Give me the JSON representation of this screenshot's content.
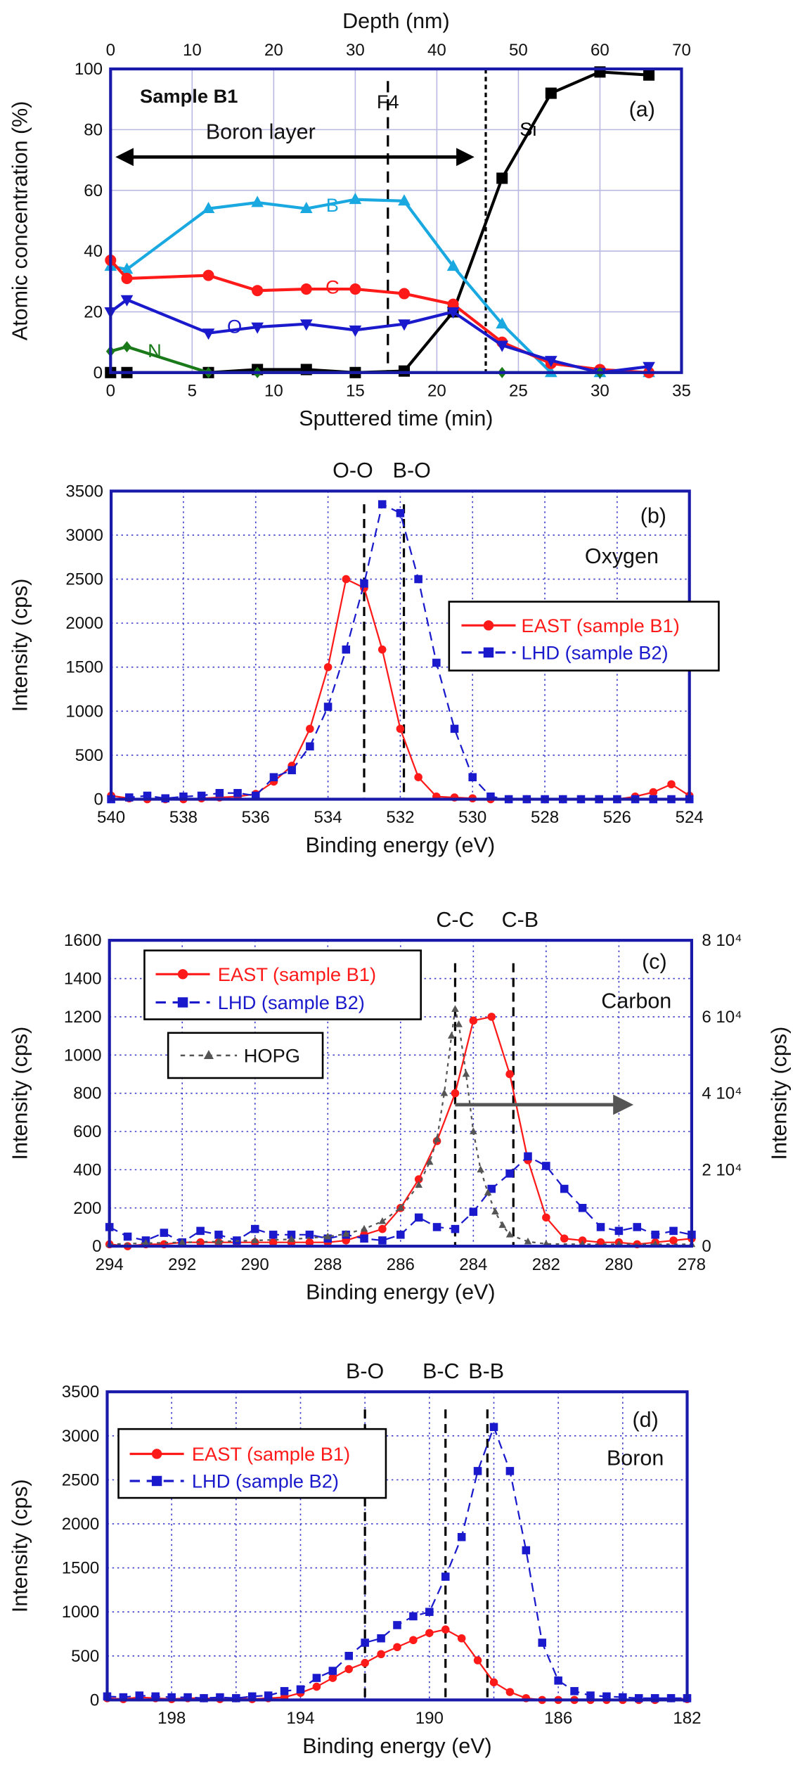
{
  "colors": {
    "frame": "#1a1aaa",
    "grid": "#3a3acc",
    "east": "#ff1a1a",
    "lhd": "#1a1acc",
    "hopg": "#555555",
    "B": "#1aa8e0",
    "C": "#ff1a1a",
    "O": "#1a1acc",
    "N": "#1a7a1a",
    "Si": "#000000"
  },
  "chart_data": [
    {
      "type": "line",
      "panel_label": "(a)",
      "sample_label": "Sample B1",
      "xlabel": "Sputtered time (min)",
      "ylabel": "Atomic concentration (%)",
      "x2label": "Depth (nm)",
      "xlim": [
        0,
        35
      ],
      "ylim": [
        0,
        100
      ],
      "x2lim": [
        0,
        70
      ],
      "xticks": [
        0,
        5,
        10,
        15,
        20,
        25,
        30,
        35
      ],
      "x2ticks": [
        0,
        10,
        20,
        30,
        40,
        50,
        60,
        70
      ],
      "yticks": [
        0,
        20,
        40,
        60,
        80,
        100
      ],
      "grid": true,
      "vlines": [
        {
          "x": 17,
          "label": "F4"
        },
        {
          "x": 23,
          "label": ""
        }
      ],
      "region": {
        "label": "Boron layer",
        "from": 0,
        "to": 22.5
      },
      "series": [
        {
          "name": "Si",
          "marker": "square",
          "x": [
            0,
            1,
            6,
            9,
            12,
            15,
            18,
            21,
            24,
            27,
            30,
            33
          ],
          "y": [
            0,
            0,
            0,
            1,
            1,
            0,
            0.5,
            20,
            64,
            92,
            99,
            98
          ]
        },
        {
          "name": "B",
          "marker": "triangle-up",
          "x": [
            0,
            1,
            6,
            9,
            12,
            15,
            18,
            21,
            24,
            27,
            30,
            33
          ],
          "y": [
            35,
            34,
            54,
            56,
            54,
            57,
            56.5,
            35,
            16,
            0,
            0,
            0
          ]
        },
        {
          "name": "C",
          "marker": "circle",
          "x": [
            0,
            1,
            6,
            9,
            12,
            15,
            18,
            21,
            24,
            27,
            30,
            33
          ],
          "y": [
            37,
            31,
            32,
            27,
            27.5,
            27.5,
            26,
            22.5,
            10,
            3,
            1,
            0
          ]
        },
        {
          "name": "O",
          "marker": "triangle-down",
          "x": [
            0,
            1,
            6,
            9,
            12,
            15,
            18,
            21,
            24,
            27,
            30,
            33
          ],
          "y": [
            20,
            24,
            13,
            15,
            16,
            14,
            16,
            20,
            9,
            4,
            0,
            2
          ]
        },
        {
          "name": "N",
          "marker": "diamond",
          "x": [
            0,
            1,
            6,
            9,
            24,
            30
          ],
          "y": [
            7,
            8.5,
            0,
            0,
            0,
            0
          ]
        }
      ]
    },
    {
      "type": "line",
      "panel_label": "(b)",
      "element_label": "Oxygen",
      "xlabel": "Binding energy (eV)",
      "ylabel": "Intensity (cps)",
      "xlim": [
        540,
        524
      ],
      "ylim": [
        0,
        3500
      ],
      "xticks": [
        540,
        538,
        536,
        534,
        532,
        530,
        528,
        526,
        524
      ],
      "yticks": [
        0,
        500,
        1000,
        1500,
        2000,
        2500,
        3000,
        3500
      ],
      "grid": true,
      "vlines": [
        {
          "x": 533.0,
          "label": "O-O"
        },
        {
          "x": 531.9,
          "label": "B-O"
        }
      ],
      "series": [
        {
          "name": "EAST (sample B1)",
          "marker": "circle",
          "x": [
            540,
            539.5,
            539,
            538.5,
            538,
            537.5,
            537,
            536.5,
            536,
            535.5,
            535,
            534.5,
            534,
            533.5,
            533,
            532.5,
            532,
            531.5,
            531,
            530.5,
            530,
            529.5,
            529,
            528.5,
            528,
            527.5,
            527,
            526.5,
            526,
            525.5,
            525,
            524.5,
            524
          ],
          "y": [
            40,
            10,
            0,
            0,
            0,
            10,
            20,
            30,
            60,
            200,
            380,
            800,
            1500,
            2500,
            2400,
            1700,
            800,
            250,
            30,
            20,
            10,
            0,
            0,
            0,
            0,
            0,
            0,
            0,
            0,
            30,
            80,
            170,
            40
          ]
        },
        {
          "name": "LHD (sample B2)",
          "marker": "square",
          "x": [
            540,
            539.5,
            539,
            538.5,
            538,
            537.5,
            537,
            536.5,
            536,
            535.5,
            535,
            534.5,
            534,
            533.5,
            533,
            532.5,
            532,
            531.5,
            531,
            530.5,
            530,
            529.5,
            529,
            528.5,
            528,
            527.5,
            527,
            526.5,
            526,
            525.5,
            525,
            524.5,
            524
          ],
          "y": [
            0,
            20,
            40,
            10,
            30,
            40,
            70,
            70,
            40,
            250,
            330,
            600,
            1050,
            1700,
            2450,
            3350,
            3250,
            2500,
            1550,
            800,
            250,
            30,
            0,
            0,
            0,
            0,
            0,
            0,
            0,
            0,
            0,
            0,
            0
          ]
        }
      ]
    },
    {
      "type": "line",
      "panel_label": "(c)",
      "element_label": "Carbon",
      "xlabel": "Binding energy (eV)",
      "ylabel": "Intensity (cps)",
      "y2label": "Intensity (cps)",
      "xlim": [
        294,
        278
      ],
      "ylim": [
        0,
        1600
      ],
      "y2lim": [
        0,
        80000
      ],
      "xticks": [
        294,
        292,
        290,
        288,
        286,
        284,
        282,
        280,
        278
      ],
      "yticks": [
        0,
        200,
        400,
        600,
        800,
        1000,
        1200,
        1400,
        1600
      ],
      "y2ticks": [
        "0",
        "2 10⁴",
        "4 10⁴",
        "6 10⁴",
        "8 10⁴"
      ],
      "grid": true,
      "vlines": [
        {
          "x": 284.5,
          "label": "C-C"
        },
        {
          "x": 282.9,
          "label": "C-B"
        }
      ],
      "arrow": {
        "from": 284.5,
        "to": 279.6,
        "y": 740,
        "meaning": "HOPG uses right axis"
      },
      "series": [
        {
          "name": "EAST (sample B1)",
          "marker": "circle",
          "x": [
            294,
            293.5,
            293,
            292.5,
            292,
            291.5,
            291,
            290.5,
            290,
            289.5,
            289,
            288.5,
            288,
            287.5,
            287,
            286.5,
            286,
            285.5,
            285,
            284.5,
            284,
            283.5,
            283,
            282.5,
            282,
            281.5,
            281,
            280.5,
            280,
            279.5,
            279,
            278.5,
            278
          ],
          "y": [
            10,
            0,
            10,
            10,
            20,
            20,
            20,
            20,
            20,
            20,
            20,
            20,
            20,
            30,
            60,
            90,
            200,
            350,
            550,
            800,
            1180,
            1200,
            900,
            450,
            150,
            40,
            30,
            20,
            20,
            10,
            20,
            30,
            40
          ]
        },
        {
          "name": "LHD (sample B2)",
          "marker": "square",
          "x": [
            294,
            293.5,
            293,
            292.5,
            292,
            291.5,
            291,
            290.5,
            290,
            289.5,
            289,
            288.5,
            288,
            287.5,
            287,
            286.5,
            286,
            285.5,
            285,
            284.5,
            284,
            283.5,
            283,
            282.5,
            282,
            281.5,
            281,
            280.5,
            280,
            279.5,
            279,
            278.5,
            278
          ],
          "y": [
            100,
            50,
            30,
            70,
            20,
            80,
            60,
            30,
            90,
            60,
            60,
            60,
            40,
            60,
            40,
            30,
            60,
            150,
            100,
            90,
            180,
            300,
            380,
            470,
            420,
            300,
            200,
            100,
            80,
            100,
            60,
            80,
            60
          ]
        },
        {
          "name": "HOPG",
          "marker": "triangle-up",
          "axis": "right",
          "x": [
            294,
            293,
            292,
            291,
            290,
            289,
            288,
            287.5,
            287,
            286.5,
            286,
            285.5,
            285.2,
            285,
            284.8,
            284.6,
            284.5,
            284.4,
            284.2,
            284,
            283.8,
            283.6,
            283.4,
            283.2,
            283,
            282.5,
            282,
            281,
            280,
            279,
            278
          ],
          "y": [
            500,
            800,
            1000,
            1200,
            1500,
            1800,
            2500,
            3200,
            4500,
            6500,
            10000,
            16000,
            22000,
            28000,
            40000,
            55000,
            62000,
            58000,
            45000,
            30000,
            20000,
            14000,
            9000,
            5500,
            3000,
            1200,
            600,
            500,
            500,
            500,
            500
          ]
        }
      ]
    },
    {
      "type": "line",
      "panel_label": "(d)",
      "element_label": "Boron",
      "xlabel": "Binding energy (eV)",
      "ylabel": "Intensity (cps)",
      "xlim": [
        200,
        182
      ],
      "ylim": [
        0,
        3500
      ],
      "xticks": [
        198,
        194,
        190,
        186,
        182
      ],
      "yticks": [
        0,
        500,
        1000,
        1500,
        2000,
        2500,
        3000,
        3500
      ],
      "grid": true,
      "vlines": [
        {
          "x": 192.0,
          "label": "B-O"
        },
        {
          "x": 189.5,
          "label": "B-C"
        },
        {
          "x": 188.2,
          "label": "B-B"
        }
      ],
      "series": [
        {
          "name": "EAST (sample B1)",
          "marker": "circle",
          "x": [
            200,
            199.5,
            199,
            198.5,
            198,
            197.5,
            197,
            196.5,
            196,
            195.5,
            195,
            194.5,
            194,
            193.5,
            193,
            192.5,
            192,
            191.5,
            191,
            190.5,
            190,
            189.5,
            189,
            188.5,
            188,
            187.5,
            187,
            186.5,
            186,
            185.5,
            185,
            184.5,
            184,
            183.5,
            183,
            182.5,
            182
          ],
          "y": [
            20,
            10,
            30,
            20,
            10,
            20,
            20,
            10,
            20,
            10,
            20,
            30,
            80,
            150,
            250,
            350,
            420,
            520,
            600,
            680,
            760,
            800,
            700,
            450,
            200,
            90,
            20,
            0,
            0,
            0,
            0,
            0,
            0,
            0,
            0,
            20,
            10
          ]
        },
        {
          "name": "LHD (sample B2)",
          "marker": "square",
          "x": [
            200,
            199.5,
            199,
            198.5,
            198,
            197.5,
            197,
            196.5,
            196,
            195.5,
            195,
            194.5,
            194,
            193.5,
            193,
            192.5,
            192,
            191.5,
            191,
            190.5,
            190,
            189.5,
            189,
            188.5,
            188,
            187.5,
            187,
            186.5,
            186,
            185.5,
            185,
            184.5,
            184,
            183.5,
            183,
            182.5,
            182
          ],
          "y": [
            40,
            30,
            50,
            40,
            30,
            30,
            20,
            30,
            20,
            40,
            50,
            100,
            120,
            250,
            330,
            500,
            650,
            700,
            850,
            950,
            1000,
            1400,
            1850,
            2600,
            3100,
            2600,
            1700,
            650,
            220,
            100,
            50,
            40,
            30,
            20,
            20,
            20,
            20
          ]
        }
      ]
    }
  ]
}
